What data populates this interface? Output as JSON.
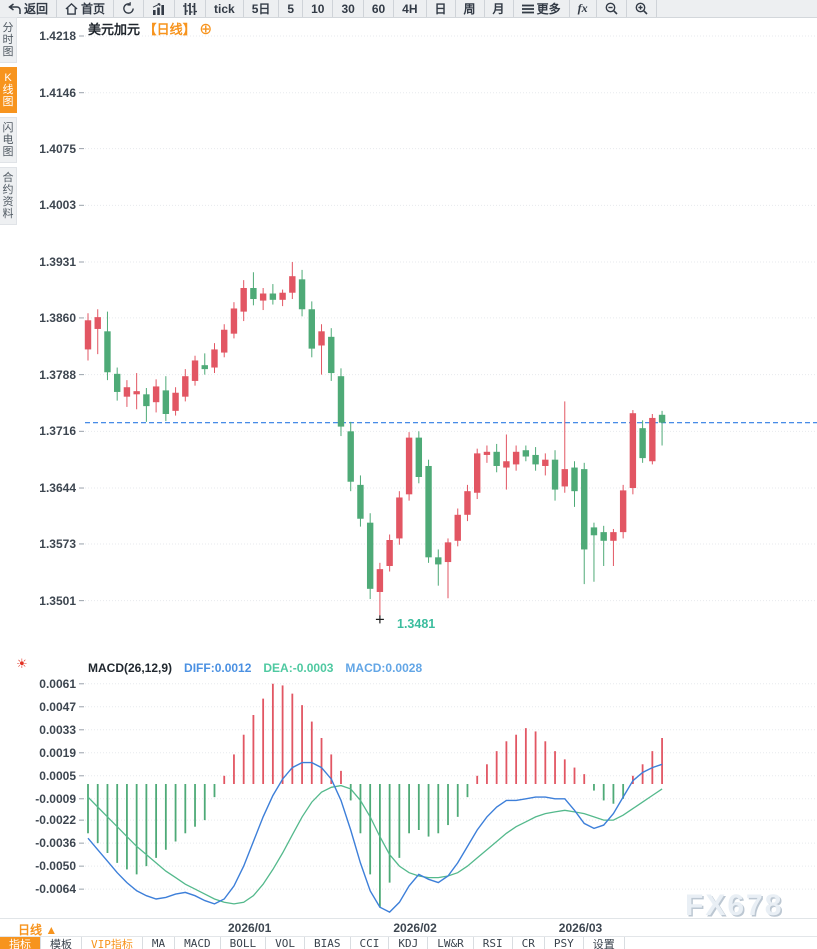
{
  "toolbar": {
    "items": [
      {
        "name": "back",
        "icon": "back-arrow-icon",
        "label": "返回"
      },
      {
        "name": "home",
        "icon": "home-icon",
        "label": "首页"
      },
      {
        "name": "refresh",
        "icon": "refresh-icon",
        "label": ""
      },
      {
        "name": "line-chart",
        "icon": "bar-chart-icon",
        "label": ""
      },
      {
        "name": "candle-chart",
        "icon": "candles-icon",
        "label": ""
      },
      {
        "name": "tick",
        "icon": "",
        "label": "tick"
      },
      {
        "name": "5d",
        "icon": "",
        "label": "5日"
      },
      {
        "name": "5min",
        "icon": "",
        "label": "5"
      },
      {
        "name": "10min",
        "icon": "",
        "label": "10"
      },
      {
        "name": "30min",
        "icon": "",
        "label": "30"
      },
      {
        "name": "60min",
        "icon": "",
        "label": "60"
      },
      {
        "name": "4h",
        "icon": "",
        "label": "4H"
      },
      {
        "name": "daily",
        "icon": "",
        "label": "日"
      },
      {
        "name": "weekly",
        "icon": "",
        "label": "周"
      },
      {
        "name": "monthly",
        "icon": "",
        "label": "月"
      },
      {
        "name": "more",
        "icon": "menu-icon",
        "label": "更多"
      },
      {
        "name": "fx",
        "icon": "",
        "label": "fx",
        "italic": true
      },
      {
        "name": "zoom-out",
        "icon": "zoom-out-icon",
        "label": ""
      },
      {
        "name": "zoom-in",
        "icon": "zoom-in-icon",
        "label": ""
      }
    ]
  },
  "sidebar": {
    "items": [
      {
        "name": "time-share-chart",
        "label": "分时图",
        "active": false
      },
      {
        "name": "kline-chart",
        "label": "K线图",
        "active": true
      },
      {
        "name": "flash-chart",
        "label": "闪电图",
        "active": false
      },
      {
        "name": "contract-info",
        "label": "合约资料",
        "active": false
      }
    ]
  },
  "header": {
    "title": "美元加元",
    "period": "【日线】",
    "add_icon": "⊕"
  },
  "price_pane": {
    "axis_ticks": [
      "1.4218",
      "1.4146",
      "1.4075",
      "1.4003",
      "1.3931",
      "1.3860",
      "1.3788",
      "1.3716",
      "1.3644",
      "1.3573",
      "1.3501"
    ],
    "low_marker_label": "1.3481"
  },
  "macd_pane": {
    "title": "MACD(26,12,9)",
    "diff_label": "DIFF:0.0012",
    "dea_label": "DEA:-0.0003",
    "macd_label": "MACD:0.0028",
    "settings_icon": "☀",
    "axis_ticks": [
      "0.0061",
      "0.0047",
      "0.0033",
      "0.0019",
      "0.0005",
      "-0.0009",
      "-0.0022",
      "-0.0036",
      "-0.0050",
      "-0.0064"
    ]
  },
  "x_axis": {
    "period_label": "日线 ▲",
    "months": [
      "2026/01",
      "2026/02",
      "2026/03"
    ]
  },
  "indicator_bar": {
    "tabs": [
      {
        "name": "indicators",
        "label": "指标",
        "active": true
      },
      {
        "name": "templates",
        "label": "模板"
      },
      {
        "name": "vip-indicators",
        "label": "VIP指标",
        "accent": true
      },
      {
        "name": "ma",
        "label": "MA"
      },
      {
        "name": "macd",
        "label": "MACD"
      },
      {
        "name": "boll",
        "label": "BOLL"
      },
      {
        "name": "vol",
        "label": "VOL"
      },
      {
        "name": "bias",
        "label": "BIAS"
      },
      {
        "name": "cci",
        "label": "CCI"
      },
      {
        "name": "kdj",
        "label": "KDJ"
      },
      {
        "name": "lwr",
        "label": "LW&R"
      },
      {
        "name": "rsi",
        "label": "RSI"
      },
      {
        "name": "cr",
        "label": "CR"
      },
      {
        "name": "psy",
        "label": "PSY"
      },
      {
        "name": "settings",
        "label": "设置"
      }
    ]
  },
  "watermark": "FX678",
  "colors": {
    "up": "#e25663",
    "down": "#4eaa77",
    "diff_line": "#3d7fd9",
    "dea_line": "#54b98c",
    "accent": "#f7941e",
    "price_line": "#2e7ce4",
    "low_label": "#3bbd9e"
  },
  "chart_data": {
    "type": "candlestick+macd",
    "symbol": "美元加元",
    "interval": "日线",
    "title": "美元加元【日线】",
    "price_axis_ticks": [
      1.4218,
      1.4146,
      1.4075,
      1.4003,
      1.3931,
      1.386,
      1.3788,
      1.3716,
      1.3644,
      1.3573,
      1.3501
    ],
    "macd_axis_ticks": [
      0.0061,
      0.0047,
      0.0033,
      0.0019,
      0.0005,
      -0.0009,
      -0.0022,
      -0.0036,
      -0.005,
      -0.0064
    ],
    "months": [
      "2026/01",
      "2026/02",
      "2026/03"
    ],
    "month_indices": [
      16,
      33,
      50
    ],
    "current_price": 1.3727,
    "low_marker": {
      "index": 30,
      "price": 1.3481,
      "label": "1.3481"
    },
    "macd_values": {
      "diff": 0.0012,
      "dea": -0.0003,
      "macd": 0.0028
    },
    "candles": [
      [
        1.382,
        1.3866,
        1.3806,
        1.3857
      ],
      [
        1.3846,
        1.3871,
        1.3814,
        1.3861
      ],
      [
        1.3843,
        1.3868,
        1.3781,
        1.3791
      ],
      [
        1.3789,
        1.3797,
        1.3755,
        1.3766
      ],
      [
        1.376,
        1.3781,
        1.3747,
        1.3772
      ],
      [
        1.3763,
        1.379,
        1.3744,
        1.3767
      ],
      [
        1.3763,
        1.3771,
        1.3728,
        1.3748
      ],
      [
        1.3753,
        1.3782,
        1.374,
        1.3773
      ],
      [
        1.3768,
        1.3786,
        1.3729,
        1.3738
      ],
      [
        1.3742,
        1.3772,
        1.3736,
        1.3765
      ],
      [
        1.376,
        1.3795,
        1.3754,
        1.3786
      ],
      [
        1.378,
        1.3812,
        1.3774,
        1.3806
      ],
      [
        1.38,
        1.3815,
        1.3788,
        1.3795
      ],
      [
        1.3797,
        1.3828,
        1.379,
        1.382
      ],
      [
        1.3816,
        1.3852,
        1.381,
        1.3845
      ],
      [
        1.384,
        1.388,
        1.3834,
        1.3872
      ],
      [
        1.3868,
        1.3908,
        1.3856,
        1.3898
      ],
      [
        1.3898,
        1.3918,
        1.3876,
        1.3884
      ],
      [
        1.3882,
        1.3898,
        1.387,
        1.3891
      ],
      [
        1.3891,
        1.3903,
        1.3877,
        1.3883
      ],
      [
        1.3883,
        1.3896,
        1.3875,
        1.3892
      ],
      [
        1.3892,
        1.3931,
        1.3884,
        1.3913
      ],
      [
        1.3909,
        1.3921,
        1.3862,
        1.3871
      ],
      [
        1.3871,
        1.3881,
        1.381,
        1.3821
      ],
      [
        1.3825,
        1.3852,
        1.3788,
        1.3843
      ],
      [
        1.3836,
        1.3847,
        1.378,
        1.379
      ],
      [
        1.3786,
        1.3796,
        1.371,
        1.3722
      ],
      [
        1.3716,
        1.3728,
        1.364,
        1.3652
      ],
      [
        1.3648,
        1.366,
        1.3595,
        1.3605
      ],
      [
        1.36,
        1.3612,
        1.3503,
        1.3516
      ],
      [
        1.3512,
        1.3549,
        1.3481,
        1.3541
      ],
      [
        1.3545,
        1.3585,
        1.3538,
        1.3578
      ],
      [
        1.358,
        1.364,
        1.3572,
        1.3632
      ],
      [
        1.3636,
        1.3715,
        1.3628,
        1.3708
      ],
      [
        1.3708,
        1.3716,
        1.365,
        1.3658
      ],
      [
        1.3672,
        1.368,
        1.3549,
        1.3556
      ],
      [
        1.3556,
        1.3566,
        1.352,
        1.3547
      ],
      [
        1.355,
        1.358,
        1.3504,
        1.3575
      ],
      [
        1.3577,
        1.3618,
        1.357,
        1.361
      ],
      [
        1.361,
        1.3648,
        1.3602,
        1.364
      ],
      [
        1.3638,
        1.3694,
        1.363,
        1.3688
      ],
      [
        1.3686,
        1.3698,
        1.3676,
        1.369
      ],
      [
        1.369,
        1.37,
        1.3664,
        1.3672
      ],
      [
        1.367,
        1.3712,
        1.3642,
        1.3678
      ],
      [
        1.3674,
        1.3698,
        1.3666,
        1.369
      ],
      [
        1.3692,
        1.3698,
        1.3678,
        1.3684
      ],
      [
        1.3686,
        1.3696,
        1.3666,
        1.3674
      ],
      [
        1.3672,
        1.3688,
        1.366,
        1.368
      ],
      [
        1.368,
        1.3692,
        1.3628,
        1.3642
      ],
      [
        1.3646,
        1.3754,
        1.3638,
        1.3668
      ],
      [
        1.367,
        1.3678,
        1.362,
        1.364
      ],
      [
        1.3668,
        1.3676,
        1.3522,
        1.3566
      ],
      [
        1.3594,
        1.36,
        1.3525,
        1.3584
      ],
      [
        1.3588,
        1.3596,
        1.3545,
        1.3577
      ],
      [
        1.3577,
        1.3592,
        1.3545,
        1.3588
      ],
      [
        1.3588,
        1.3648,
        1.358,
        1.3641
      ],
      [
        1.3644,
        1.3743,
        1.3636,
        1.3739
      ],
      [
        1.372,
        1.373,
        1.3676,
        1.3682
      ],
      [
        1.3678,
        1.3738,
        1.3674,
        1.3733
      ],
      [
        1.3737,
        1.3742,
        1.3698,
        1.3727
      ]
    ],
    "macd": {
      "hist": [
        -0.003,
        -0.0036,
        -0.0042,
        -0.0048,
        -0.0052,
        -0.0055,
        -0.005,
        -0.0045,
        -0.004,
        -0.0035,
        -0.003,
        -0.0026,
        -0.0022,
        -0.0008,
        0.0005,
        0.0018,
        0.003,
        0.0042,
        0.0052,
        0.0061,
        0.006,
        0.0055,
        0.0048,
        0.0038,
        0.0028,
        0.0018,
        0.0008,
        -0.001,
        -0.003,
        -0.0055,
        -0.0075,
        -0.006,
        -0.0045,
        -0.003,
        -0.0028,
        -0.0032,
        -0.003,
        -0.0025,
        -0.002,
        -0.0008,
        0.0005,
        0.0012,
        0.002,
        0.0026,
        0.003,
        0.0034,
        0.0032,
        0.0026,
        0.002,
        0.0015,
        0.001,
        0.0006,
        -0.0004,
        -0.001,
        -0.0012,
        -0.0009,
        0.0005,
        0.0012,
        0.002,
        0.0028
      ],
      "diff": [
        -0.0033,
        -0.004,
        -0.0047,
        -0.0054,
        -0.006,
        -0.0065,
        -0.0068,
        -0.007,
        -0.0069,
        -0.0067,
        -0.0066,
        -0.0068,
        -0.0071,
        -0.0073,
        -0.007,
        -0.0062,
        -0.005,
        -0.0035,
        -0.002,
        -0.0007,
        0.0003,
        0.001,
        0.0013,
        0.0013,
        0.001,
        0.0003,
        -0.001,
        -0.0028,
        -0.0048,
        -0.0065,
        -0.0075,
        -0.0078,
        -0.0072,
        -0.0062,
        -0.0055,
        -0.0058,
        -0.006,
        -0.0056,
        -0.0048,
        -0.0038,
        -0.0028,
        -0.002,
        -0.0014,
        -0.001,
        -0.001,
        -0.0009,
        -0.0008,
        -0.0008,
        -0.0009,
        -0.0009,
        -0.0016,
        -0.0024,
        -0.0027,
        -0.0025,
        -0.0018,
        -0.0008,
        0.0002,
        0.0007,
        0.001,
        0.0012
      ],
      "dea": [
        -0.0008,
        -0.0014,
        -0.002,
        -0.0026,
        -0.0032,
        -0.0038,
        -0.0043,
        -0.0048,
        -0.0053,
        -0.0057,
        -0.0061,
        -0.0064,
        -0.0067,
        -0.007,
        -0.0072,
        -0.0073,
        -0.0072,
        -0.0068,
        -0.0061,
        -0.0052,
        -0.0042,
        -0.0031,
        -0.002,
        -0.0011,
        -0.0005,
        -0.0002,
        -0.0001,
        -0.0003,
        -0.001,
        -0.002,
        -0.0032,
        -0.0043,
        -0.005,
        -0.0054,
        -0.0056,
        -0.0057,
        -0.0057,
        -0.0056,
        -0.0054,
        -0.005,
        -0.0045,
        -0.004,
        -0.0035,
        -0.003,
        -0.0026,
        -0.0023,
        -0.002,
        -0.0018,
        -0.0017,
        -0.0016,
        -0.0017,
        -0.0018,
        -0.002,
        -0.0022,
        -0.0022,
        -0.0019,
        -0.0015,
        -0.0011,
        -0.0007,
        -0.0003
      ]
    }
  }
}
